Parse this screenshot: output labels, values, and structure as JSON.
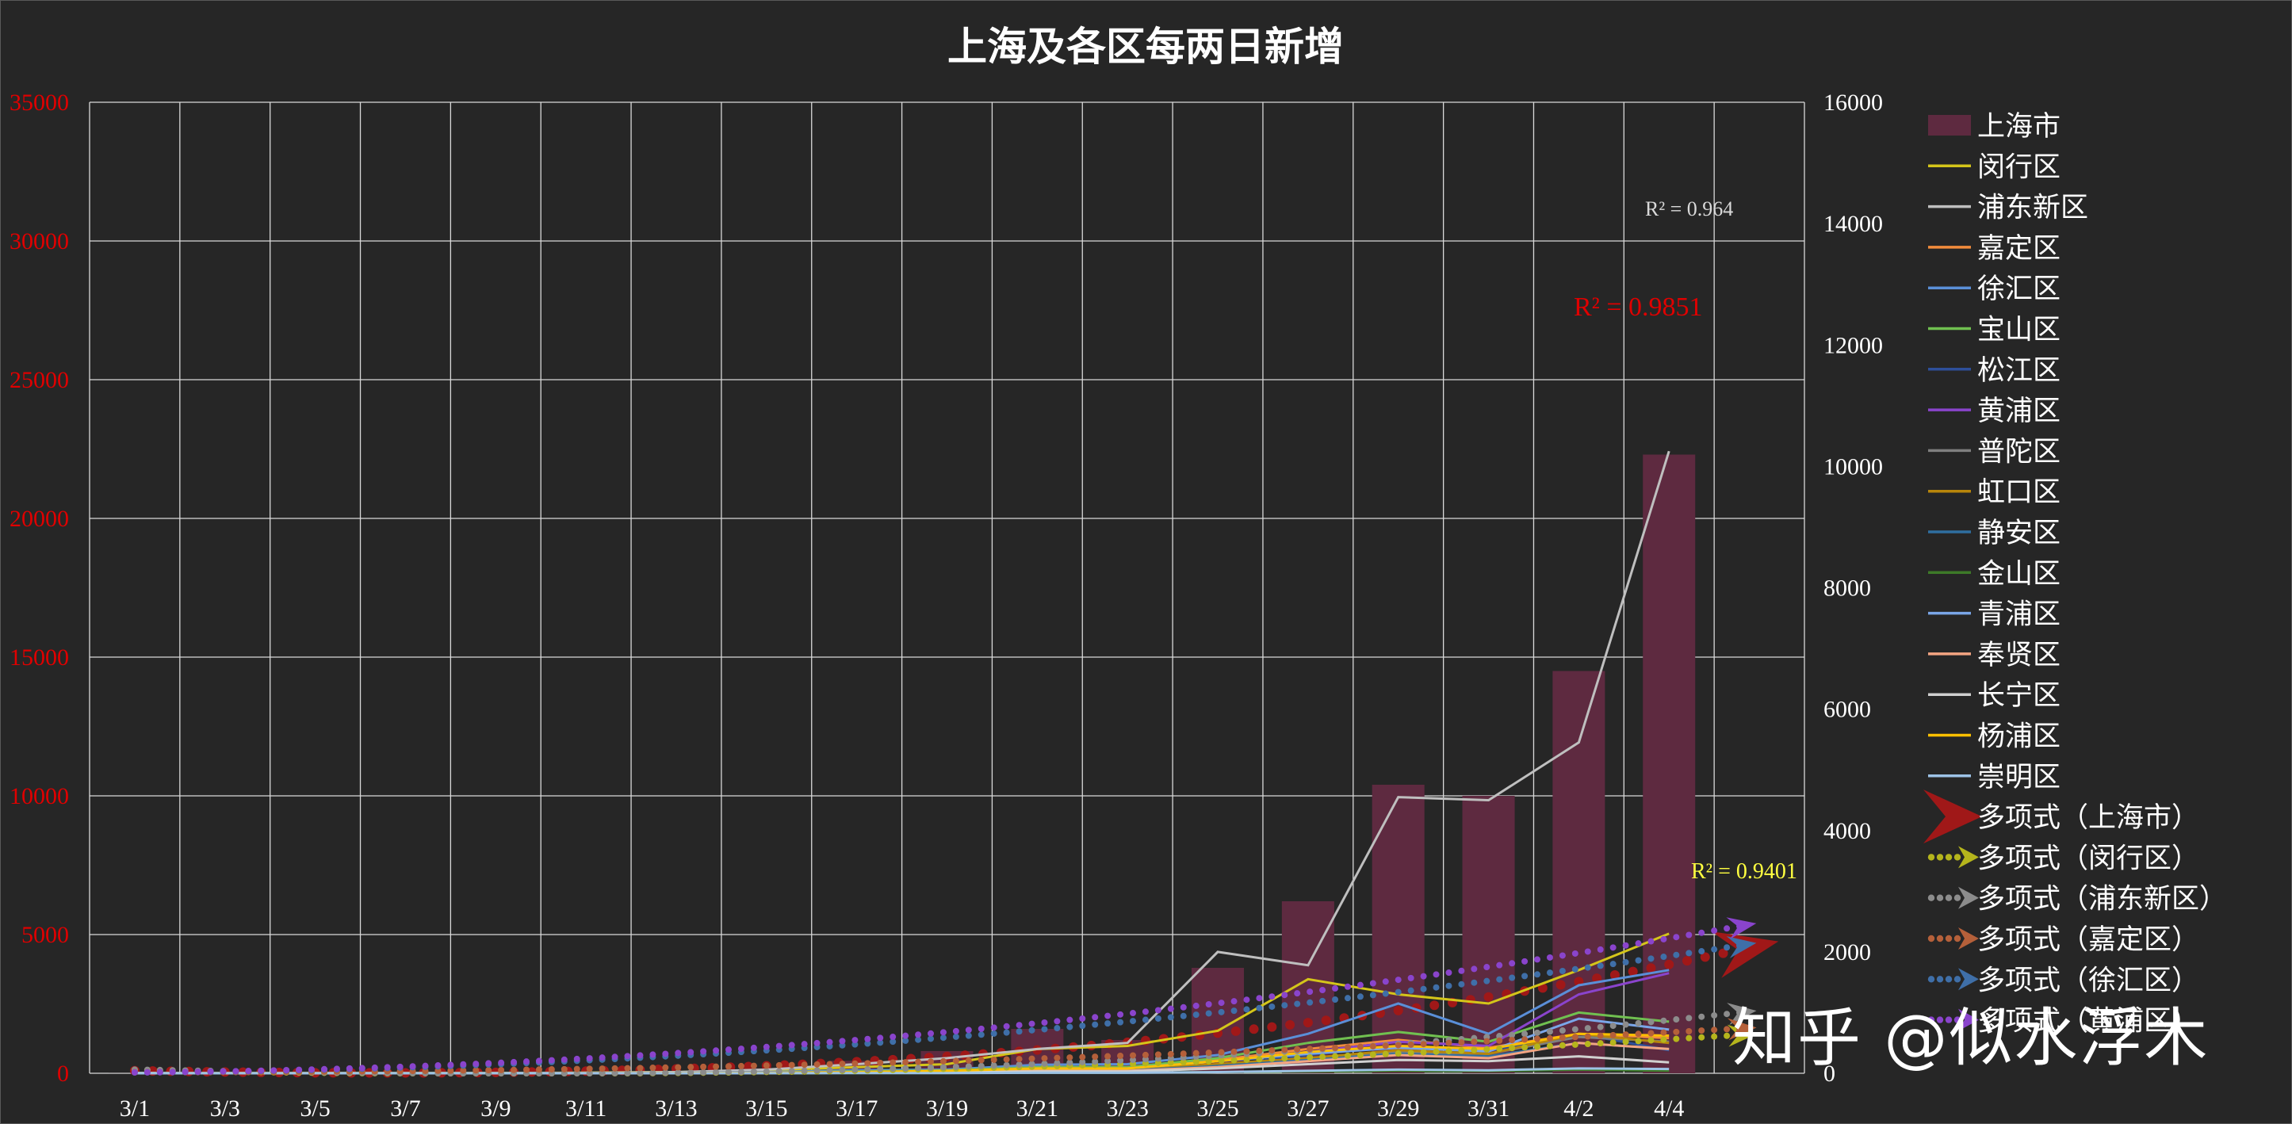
{
  "chart_data": {
    "type": "bar",
    "title": "上海及各区每两日新增",
    "categories": [
      "3/1",
      "3/3",
      "3/5",
      "3/7",
      "3/9",
      "3/11",
      "3/13",
      "3/15",
      "3/17",
      "3/19",
      "3/21",
      "3/23",
      "3/25",
      "3/27",
      "3/29",
      "3/31",
      "4/2",
      "4/4"
    ],
    "x_tick_labels": [
      "3/1",
      "3/3",
      "3/5",
      "3/7",
      "3/9",
      "3/11",
      "3/13",
      "3/15",
      "3/17",
      "3/19",
      "3/21",
      "3/23",
      "3/25",
      "3/27",
      "3/29",
      "3/31",
      "4/2",
      "4/4"
    ],
    "y_left": {
      "min": 0,
      "max": 35000,
      "step": 5000,
      "tick_color": "#e00000",
      "ticks": [
        "0",
        "5000",
        "10000",
        "15000",
        "20000",
        "25000",
        "30000",
        "35000"
      ]
    },
    "y_right": {
      "min": 0,
      "max": 16000,
      "step": 2000,
      "ticks": [
        "0",
        "2000",
        "4000",
        "6000",
        "8000",
        "10000",
        "12000",
        "14000",
        "16000"
      ]
    },
    "grid": true,
    "legend_position": "right",
    "bar_series": {
      "name": "上海市",
      "axis": "left",
      "color": "#5e2a40",
      "values": [
        2,
        2,
        3,
        4,
        5,
        20,
        60,
        180,
        450,
        800,
        1600,
        1200,
        3800,
        6200,
        10400,
        10000,
        14500,
        22300
      ]
    },
    "line_series": [
      {
        "name": "闵行区",
        "color": "#d4c51a",
        "values": [
          5,
          3,
          2,
          3,
          4,
          10,
          20,
          50,
          100,
          150,
          400,
          450,
          700,
          1550,
          1300,
          1150,
          1700,
          2300
        ]
      },
      {
        "name": "浦东新区",
        "color": "#bfbfbf",
        "values": [
          5,
          3,
          2,
          2,
          3,
          8,
          20,
          60,
          150,
          250,
          400,
          500,
          2000,
          1780,
          4550,
          4500,
          5450,
          10250
        ]
      },
      {
        "name": "嘉定区",
        "color": "#f28c3c",
        "values": [
          0,
          0,
          0,
          0,
          0,
          2,
          5,
          10,
          20,
          40,
          100,
          100,
          220,
          400,
          550,
          420,
          650,
          580
        ]
      },
      {
        "name": "徐汇区",
        "color": "#5a8fd8",
        "values": [
          0,
          0,
          0,
          0,
          0,
          3,
          8,
          20,
          50,
          60,
          140,
          150,
          300,
          650,
          1150,
          650,
          1450,
          1700
        ]
      },
      {
        "name": "宝山区",
        "color": "#70c050",
        "values": [
          0,
          0,
          0,
          0,
          0,
          2,
          5,
          10,
          30,
          50,
          100,
          100,
          250,
          500,
          680,
          520,
          1000,
          850
        ]
      },
      {
        "name": "松江区",
        "color": "#2e4f9a",
        "values": [
          0,
          0,
          0,
          0,
          0,
          1,
          3,
          5,
          10,
          20,
          50,
          60,
          120,
          300,
          450,
          370,
          650,
          380
        ]
      },
      {
        "name": "黄浦区",
        "color": "#8a44cc",
        "values": [
          0,
          0,
          0,
          0,
          0,
          2,
          5,
          10,
          20,
          40,
          80,
          80,
          200,
          350,
          520,
          450,
          1300,
          1650
        ]
      },
      {
        "name": "普陀区",
        "color": "#7f7f7f",
        "values": [
          0,
          0,
          0,
          0,
          0,
          1,
          3,
          8,
          15,
          30,
          60,
          60,
          150,
          250,
          350,
          320,
          600,
          520
        ]
      },
      {
        "name": "虹口区",
        "color": "#b8860b",
        "values": [
          0,
          0,
          0,
          0,
          0,
          1,
          3,
          5,
          10,
          25,
          60,
          60,
          150,
          250,
          380,
          320,
          650,
          500
        ]
      },
      {
        "name": "静安区",
        "color": "#2f6fa0",
        "values": [
          0,
          0,
          0,
          0,
          0,
          1,
          2,
          5,
          10,
          20,
          50,
          50,
          120,
          220,
          320,
          280,
          500,
          400
        ]
      },
      {
        "name": "金山区",
        "color": "#3d7a28",
        "values": [
          0,
          0,
          0,
          0,
          0,
          0,
          0,
          1,
          2,
          5,
          10,
          10,
          20,
          30,
          40,
          35,
          60,
          40
        ]
      },
      {
        "name": "青浦区",
        "color": "#7aa6e8",
        "values": [
          0,
          0,
          0,
          0,
          0,
          1,
          3,
          8,
          15,
          30,
          70,
          80,
          200,
          320,
          420,
          360,
          900,
          720
        ]
      },
      {
        "name": "奉贤区",
        "color": "#f4a582",
        "values": [
          0,
          0,
          0,
          0,
          0,
          1,
          2,
          5,
          10,
          20,
          40,
          40,
          100,
          200,
          300,
          250,
          500,
          400
        ]
      },
      {
        "name": "长宁区",
        "color": "#d0d0d0",
        "values": [
          0,
          0,
          0,
          0,
          0,
          1,
          2,
          4,
          8,
          15,
          30,
          30,
          80,
          150,
          220,
          200,
          280,
          180
        ]
      },
      {
        "name": "杨浦区",
        "color": "#ffc000",
        "values": [
          0,
          0,
          0,
          0,
          0,
          1,
          3,
          8,
          20,
          40,
          80,
          80,
          200,
          350,
          450,
          400,
          650,
          620
        ]
      },
      {
        "name": "崇明区",
        "color": "#9dc3e6",
        "values": [
          0,
          0,
          0,
          0,
          0,
          0,
          0,
          1,
          2,
          4,
          8,
          8,
          20,
          40,
          60,
          50,
          80,
          70
        ]
      }
    ],
    "trendlines": [
      {
        "name": "多项式（上海市）",
        "axis": "left",
        "color": "#a01818",
        "style": "dotted-large",
        "r2_label": "R² = 0.9851",
        "r2_color": "#e00000",
        "coef": [
          157.02,
          -69.99,
          6.51,
          0.5
        ],
        "end_x": 18.9
      },
      {
        "name": "多项式（闵行区）",
        "axis": "right",
        "color": "#b5b51c",
        "style": "dotted",
        "r2_label": "R² = 0.9401",
        "r2_color": "#ffff40",
        "coef": [
          83.5,
          -35.3,
          3.43,
          0.0
        ],
        "end_x": 18.9
      },
      {
        "name": "多项式（浦东新区）",
        "axis": "right",
        "color": "#8c8c8c",
        "style": "dotted",
        "r2_label": "R² = 0.964",
        "r2_color": "#d9d9d9",
        "coef": [
          92.8,
          -34.3,
          2.52,
          0.1
        ],
        "end_x": 18.9
      },
      {
        "name": "多项式（嘉定区）",
        "axis": "right",
        "color": "#b5603a",
        "style": "dotted",
        "coef": [
          20,
          -5,
          2.3,
          0.0
        ],
        "end_x": 18.9
      },
      {
        "name": "多项式（徐汇区）",
        "axis": "right",
        "color": "#3f6fa8",
        "style": "dotted",
        "coef": [
          10,
          -3,
          6.1,
          0.0
        ],
        "end_x": 18.9
      },
      {
        "name": "多项式（黄浦区）",
        "axis": "right",
        "color": "#8a44cc",
        "style": "dotted",
        "coef": [
          10,
          -3,
          7.0,
          0.0
        ],
        "end_x": 18.9
      }
    ]
  },
  "legend": {
    "items": [
      {
        "label": "上海市",
        "kind": "bar",
        "color": "#5e2a40"
      },
      {
        "label": "闵行区",
        "kind": "line",
        "color": "#d4c51a"
      },
      {
        "label": "浦东新区",
        "kind": "line",
        "color": "#bfbfbf"
      },
      {
        "label": "嘉定区",
        "kind": "line",
        "color": "#f28c3c"
      },
      {
        "label": "徐汇区",
        "kind": "line",
        "color": "#5a8fd8"
      },
      {
        "label": "宝山区",
        "kind": "line",
        "color": "#70c050"
      },
      {
        "label": "松江区",
        "kind": "line",
        "color": "#2e4f9a"
      },
      {
        "label": "黄浦区",
        "kind": "line",
        "color": "#8a44cc"
      },
      {
        "label": "普陀区",
        "kind": "line",
        "color": "#7f7f7f"
      },
      {
        "label": "虹口区",
        "kind": "line",
        "color": "#b8860b"
      },
      {
        "label": "静安区",
        "kind": "line",
        "color": "#2f6fa0"
      },
      {
        "label": "金山区",
        "kind": "line",
        "color": "#3d7a28"
      },
      {
        "label": "青浦区",
        "kind": "line",
        "color": "#7aa6e8"
      },
      {
        "label": "奉贤区",
        "kind": "line",
        "color": "#f4a582"
      },
      {
        "label": "长宁区",
        "kind": "line",
        "color": "#d0d0d0"
      },
      {
        "label": "杨浦区",
        "kind": "line",
        "color": "#ffc000"
      },
      {
        "label": "崇明区",
        "kind": "line",
        "color": "#9dc3e6"
      },
      {
        "label": "多项式（上海市）",
        "kind": "trend-big",
        "color": "#a01818"
      },
      {
        "label": "多项式（闵行区）",
        "kind": "trend",
        "color": "#b5b51c"
      },
      {
        "label": "多项式（浦东新区）",
        "kind": "trend",
        "color": "#8c8c8c"
      },
      {
        "label": "多项式（嘉定区）",
        "kind": "trend",
        "color": "#b5603a"
      },
      {
        "label": "多项式（徐汇区）",
        "kind": "trend",
        "color": "#3f6fa8"
      },
      {
        "label": "多项式（黄浦区）",
        "kind": "trend",
        "color": "#8a44cc"
      }
    ]
  },
  "watermark": {
    "text": "知乎 @似水浮木"
  }
}
